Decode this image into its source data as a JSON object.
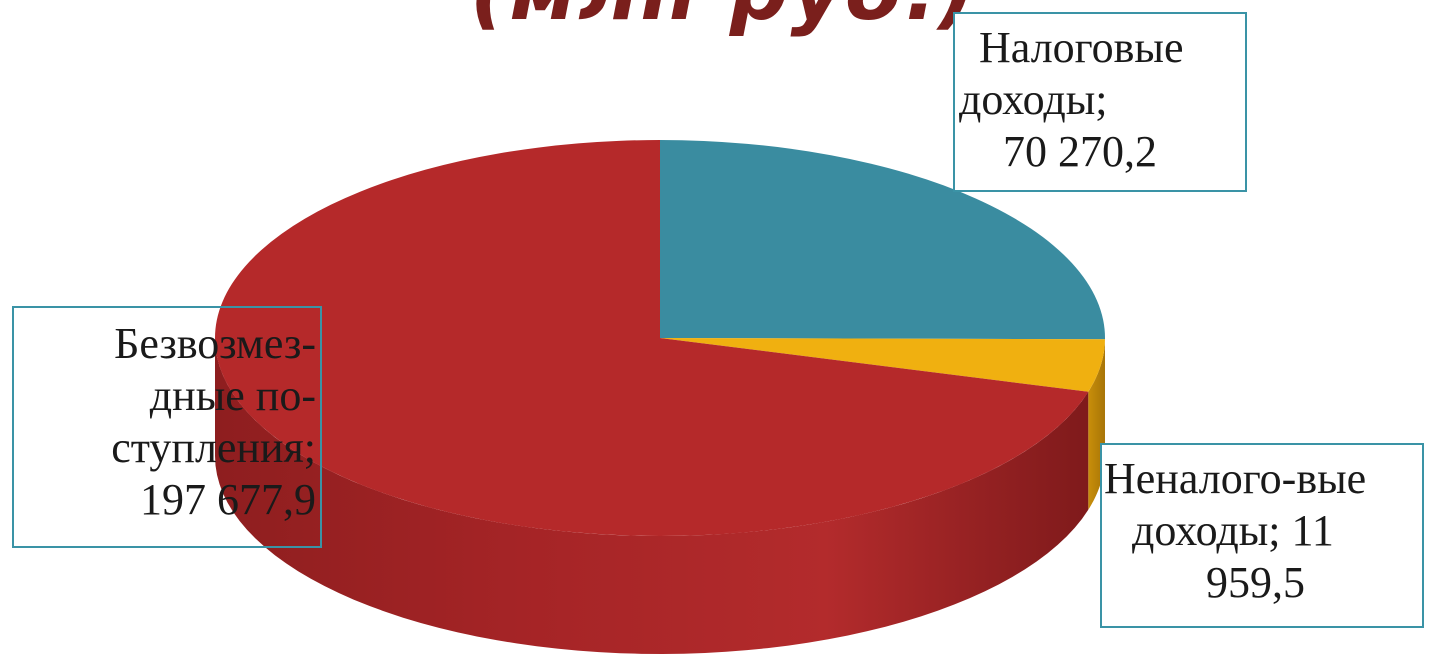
{
  "title": "(млн руб.)",
  "chart_data": {
    "type": "pie",
    "title": "(млн руб.)",
    "slices": [
      {
        "name": "Налоговые доходы",
        "value": 70270.2,
        "value_label": "70 270,2",
        "color": "#3a8ca0",
        "label_lines": [
          "Налоговые",
          "доходы;",
          "70 270,2"
        ]
      },
      {
        "name": "Неналого-вые доходы",
        "value": 11959.5,
        "value_label": "11 959,5",
        "color": "#f0b010",
        "label_lines": [
          "Неналого-вые",
          "доходы; 11",
          "959,5"
        ]
      },
      {
        "name": "Безвозмез-дные по-ступления",
        "value": 197677.9,
        "value_label": "197 677,9",
        "color": "#b5292a",
        "label_lines": [
          "Безвозмез-",
          "дные по-",
          "ступления;",
          "197 677,9"
        ]
      }
    ],
    "style": "3d"
  }
}
